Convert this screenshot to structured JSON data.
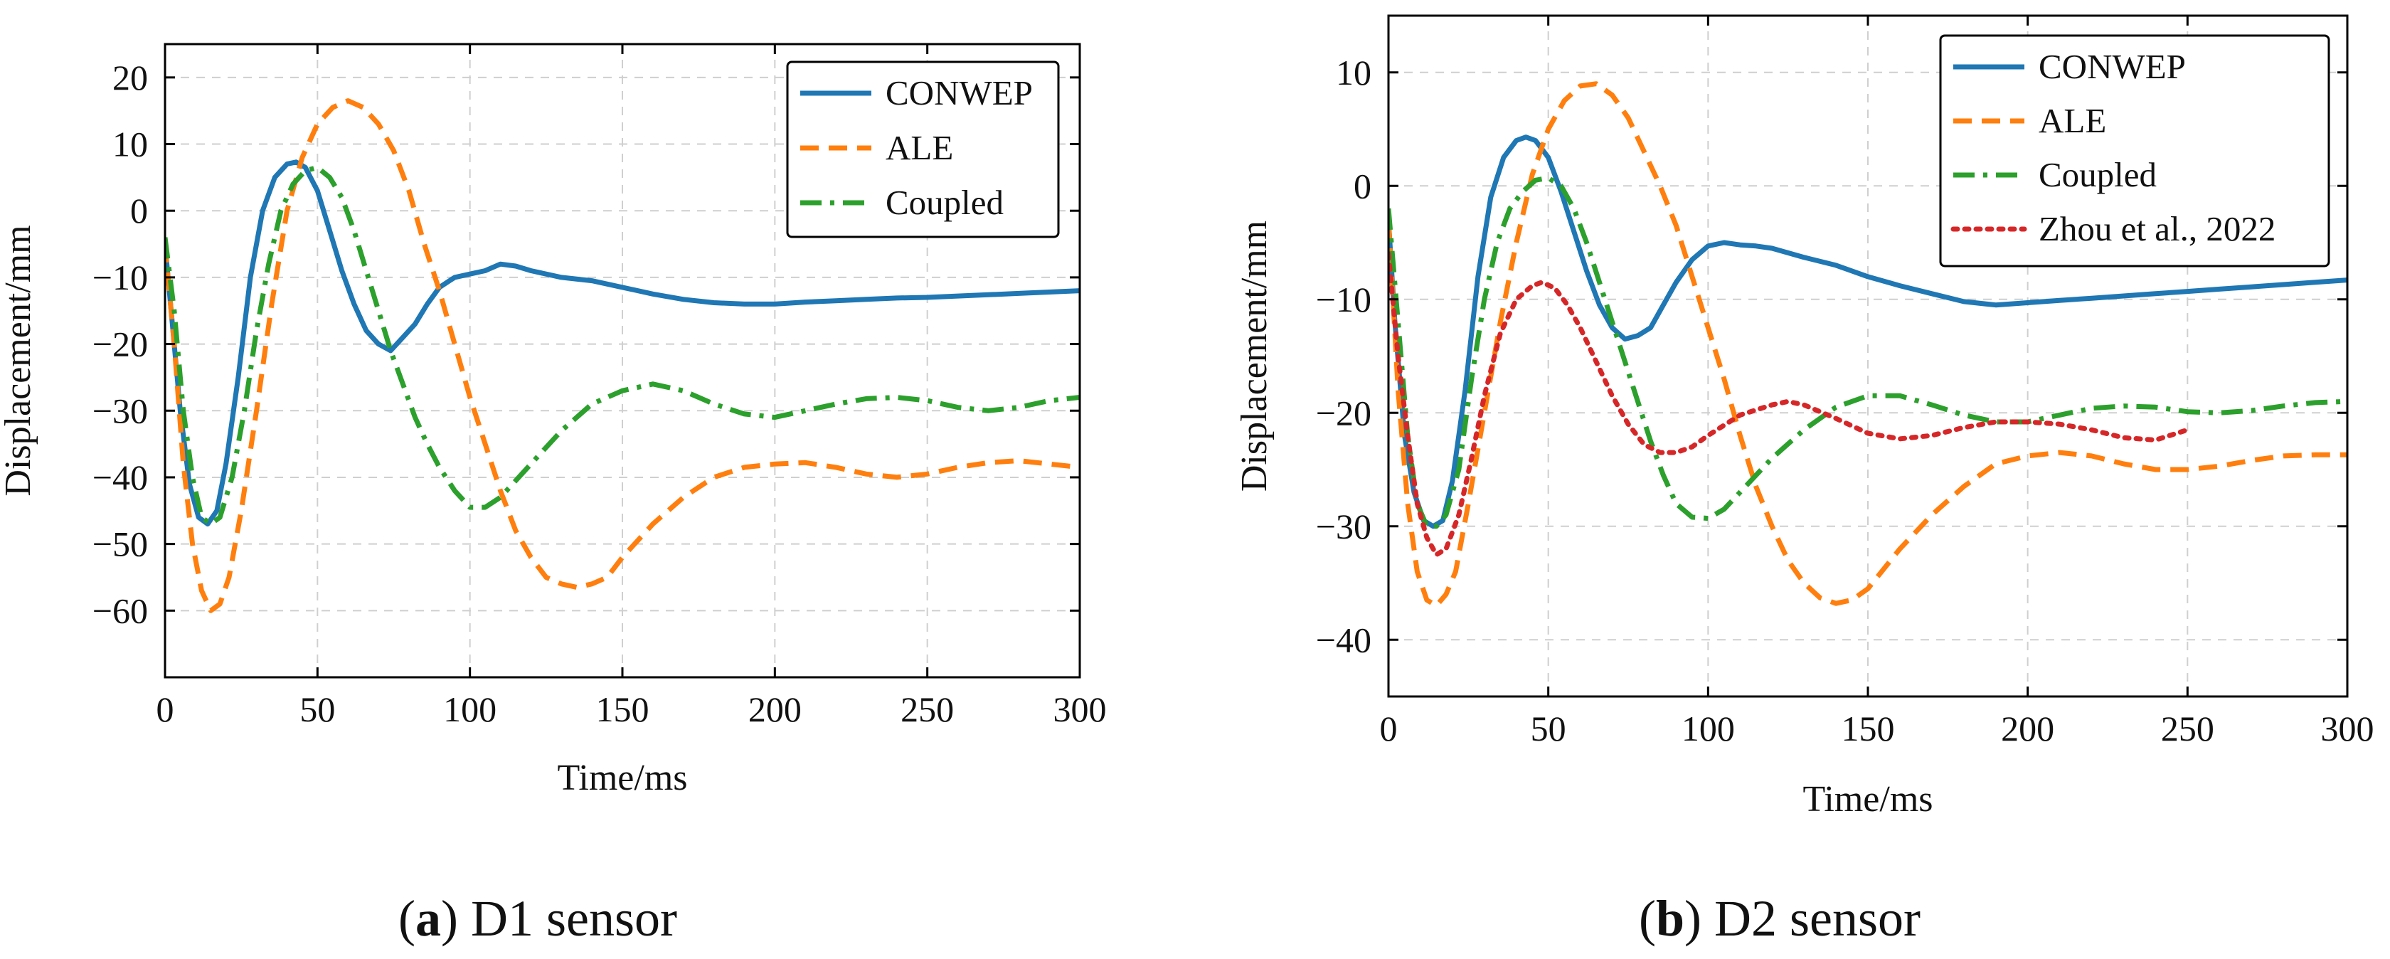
{
  "chart_data": [
    {
      "id": "a",
      "type": "line",
      "xlabel": "Time/ms",
      "ylabel": "Displacement/mm",
      "xlim": [
        0,
        300
      ],
      "ylim": [
        -70,
        25
      ],
      "xticks": [
        0,
        50,
        100,
        150,
        200,
        250,
        300
      ],
      "yticks": [
        -60,
        -50,
        -40,
        -30,
        -20,
        -10,
        0,
        10,
        20
      ],
      "grid": true,
      "legend_position": "top-right",
      "caption_label": "a",
      "caption_text": "D1 sensor",
      "series": [
        {
          "name": "CONWEP",
          "style": "solid",
          "color": "#1f77b4",
          "x": [
            0,
            2,
            5,
            8,
            11,
            14,
            17,
            20,
            24,
            28,
            32,
            36,
            40,
            43,
            46,
            50,
            54,
            58,
            62,
            66,
            70,
            74,
            78,
            82,
            86,
            90,
            95,
            100,
            105,
            110,
            115,
            120,
            130,
            140,
            150,
            160,
            170,
            180,
            190,
            200,
            210,
            220,
            230,
            240,
            250,
            260,
            270,
            280,
            290,
            300
          ],
          "y": [
            -5,
            -15,
            -30,
            -41,
            -46,
            -47,
            -45,
            -38,
            -25,
            -10,
            0,
            5,
            7,
            7.3,
            6.5,
            3,
            -3,
            -9,
            -14,
            -18,
            -20,
            -21,
            -19,
            -17,
            -14,
            -11.5,
            -10,
            -9.5,
            -9,
            -8,
            -8.3,
            -9,
            -10,
            -10.5,
            -11.5,
            -12.5,
            -13.3,
            -13.8,
            -14,
            -14,
            -13.7,
            -13.5,
            -13.3,
            -13.1,
            -13,
            -12.8,
            -12.6,
            -12.4,
            -12.2,
            -12
          ]
        },
        {
          "name": "ALE",
          "style": "dashed",
          "color": "#ff7f0e",
          "x": [
            0,
            3,
            6,
            9,
            12,
            15,
            18,
            21,
            25,
            30,
            35,
            40,
            45,
            50,
            55,
            60,
            65,
            70,
            75,
            80,
            85,
            90,
            95,
            100,
            105,
            110,
            115,
            120,
            125,
            130,
            135,
            140,
            145,
            150,
            160,
            170,
            180,
            190,
            200,
            210,
            220,
            230,
            240,
            250,
            260,
            270,
            280,
            290,
            300
          ],
          "y": [
            -5,
            -20,
            -38,
            -50,
            -57,
            -60,
            -59,
            -55,
            -45,
            -30,
            -14,
            0,
            8,
            13,
            15.5,
            16.5,
            15.5,
            13,
            9,
            3,
            -5,
            -12,
            -20,
            -28,
            -35,
            -42,
            -48,
            -52,
            -55,
            -56,
            -56.5,
            -56,
            -55,
            -52,
            -47,
            -43,
            -40,
            -38.5,
            -38,
            -37.8,
            -38.5,
            -39.5,
            -40,
            -39.5,
            -38.5,
            -37.8,
            -37.5,
            -38,
            -38.5
          ]
        },
        {
          "name": "Coupled",
          "style": "dashdot",
          "color": "#2ca02c",
          "x": [
            0,
            3,
            6,
            9,
            12,
            15,
            18,
            22,
            26,
            30,
            34,
            38,
            42,
            46,
            50,
            54,
            58,
            62,
            66,
            70,
            74,
            78,
            82,
            86,
            90,
            95,
            100,
            105,
            110,
            115,
            120,
            130,
            140,
            150,
            160,
            170,
            180,
            190,
            200,
            210,
            220,
            230,
            240,
            250,
            260,
            270,
            280,
            290,
            300
          ],
          "y": [
            -4,
            -15,
            -30,
            -40,
            -46,
            -47,
            -46,
            -40,
            -30,
            -18,
            -8,
            0,
            4,
            6,
            6.5,
            5,
            2,
            -3,
            -9,
            -15,
            -21,
            -26,
            -31,
            -35,
            -38.5,
            -42,
            -44.5,
            -44.5,
            -43,
            -40.5,
            -38,
            -33,
            -29,
            -27,
            -26,
            -27,
            -29,
            -30.5,
            -31,
            -30,
            -29,
            -28.2,
            -28,
            -28.5,
            -29.5,
            -30,
            -29.5,
            -28.5,
            -28
          ]
        }
      ]
    },
    {
      "id": "b",
      "type": "line",
      "xlabel": "Time/ms",
      "ylabel": "Displacement/mm",
      "xlim": [
        0,
        300
      ],
      "ylim": [
        -45,
        15
      ],
      "xticks": [
        0,
        50,
        100,
        150,
        200,
        250,
        300
      ],
      "yticks": [
        -40,
        -30,
        -20,
        -10,
        0,
        10
      ],
      "grid": true,
      "legend_position": "top-right",
      "caption_label": "b",
      "caption_text": "D2 sensor",
      "series": [
        {
          "name": "CONWEP",
          "style": "solid",
          "color": "#1f77b4",
          "x": [
            0,
            2,
            5,
            8,
            11,
            14,
            17,
            20,
            24,
            28,
            32,
            36,
            40,
            43,
            46,
            50,
            54,
            58,
            62,
            66,
            70,
            74,
            78,
            82,
            86,
            90,
            95,
            100,
            105,
            110,
            115,
            120,
            130,
            140,
            150,
            160,
            170,
            180,
            190,
            200,
            210,
            220,
            230,
            240,
            250,
            260,
            270,
            280,
            290,
            300
          ],
          "y": [
            -3,
            -12,
            -22,
            -27,
            -29.5,
            -30,
            -29.5,
            -26,
            -18,
            -8,
            -1,
            2.5,
            4,
            4.3,
            4,
            2.5,
            -0.5,
            -4,
            -7.5,
            -10.5,
            -12.5,
            -13.5,
            -13.2,
            -12.5,
            -10.5,
            -8.5,
            -6.5,
            -5.3,
            -5,
            -5.2,
            -5.3,
            -5.5,
            -6.3,
            -7,
            -8,
            -8.8,
            -9.5,
            -10.2,
            -10.5,
            -10.3,
            -10.1,
            -9.9,
            -9.7,
            -9.5,
            -9.3,
            -9.1,
            -8.9,
            -8.7,
            -8.5,
            -8.3
          ]
        },
        {
          "name": "ALE",
          "style": "dashed",
          "color": "#ff7f0e",
          "x": [
            0,
            3,
            6,
            9,
            12,
            15,
            18,
            21,
            25,
            30,
            35,
            40,
            45,
            50,
            55,
            60,
            65,
            70,
            75,
            80,
            85,
            90,
            95,
            100,
            105,
            110,
            115,
            120,
            125,
            130,
            135,
            140,
            145,
            150,
            160,
            170,
            180,
            190,
            200,
            210,
            220,
            230,
            240,
            250,
            260,
            270,
            280,
            290,
            300
          ],
          "y": [
            -3,
            -18,
            -28,
            -34,
            -36.5,
            -37,
            -36,
            -34,
            -28,
            -20,
            -12,
            -5,
            1,
            5,
            7.5,
            8.8,
            9,
            8,
            6,
            3,
            0,
            -3.5,
            -8,
            -12.5,
            -17,
            -22,
            -26.5,
            -30,
            -33,
            -35,
            -36.3,
            -36.8,
            -36.5,
            -35.5,
            -32,
            -29,
            -26.5,
            -24.5,
            -23.8,
            -23.5,
            -23.8,
            -24.5,
            -25,
            -25,
            -24.7,
            -24.2,
            -23.8,
            -23.7,
            -23.7
          ]
        },
        {
          "name": "Coupled",
          "style": "dashdot",
          "color": "#2ca02c",
          "x": [
            0,
            3,
            6,
            9,
            12,
            15,
            18,
            22,
            26,
            30,
            34,
            38,
            42,
            46,
            50,
            54,
            58,
            62,
            66,
            70,
            74,
            78,
            82,
            86,
            90,
            95,
            100,
            105,
            110,
            115,
            120,
            130,
            140,
            150,
            160,
            170,
            180,
            190,
            200,
            210,
            220,
            230,
            240,
            250,
            260,
            270,
            280,
            290,
            300
          ],
          "y": [
            -2,
            -12,
            -22,
            -28,
            -30,
            -30,
            -29,
            -25,
            -17,
            -10,
            -5,
            -2,
            -0.5,
            0.5,
            0.7,
            0,
            -2,
            -5,
            -8.5,
            -12,
            -15.5,
            -19,
            -22.5,
            -25.5,
            -28,
            -29.2,
            -29.3,
            -28.5,
            -27,
            -25.5,
            -24,
            -21.5,
            -19.5,
            -18.5,
            -18.5,
            -19.3,
            -20.2,
            -20.8,
            -20.8,
            -20.2,
            -19.6,
            -19.4,
            -19.5,
            -19.9,
            -20,
            -19.8,
            -19.4,
            -19.1,
            -19
          ]
        },
        {
          "name": "Zhou et al., 2022",
          "style": "dotted",
          "color": "#d62728",
          "x": [
            0,
            3,
            6,
            9,
            12,
            15,
            18,
            22,
            26,
            30,
            35,
            40,
            45,
            48,
            52,
            56,
            60,
            65,
            70,
            75,
            80,
            85,
            90,
            95,
            100,
            110,
            120,
            125,
            130,
            140,
            150,
            160,
            170,
            180,
            190,
            200,
            210,
            220,
            230,
            240,
            250
          ],
          "y": [
            -6,
            -15,
            -22,
            -28,
            -31,
            -32.5,
            -32,
            -29,
            -24,
            -18.5,
            -13,
            -10,
            -8.8,
            -8.5,
            -9,
            -10.5,
            -12.5,
            -15.5,
            -18.5,
            -21,
            -22.8,
            -23.5,
            -23.5,
            -23,
            -22,
            -20.2,
            -19.3,
            -19,
            -19.3,
            -20.5,
            -21.8,
            -22.3,
            -22,
            -21.3,
            -20.8,
            -20.8,
            -21,
            -21.5,
            -22.2,
            -22.4,
            -21.5
          ]
        }
      ]
    }
  ]
}
